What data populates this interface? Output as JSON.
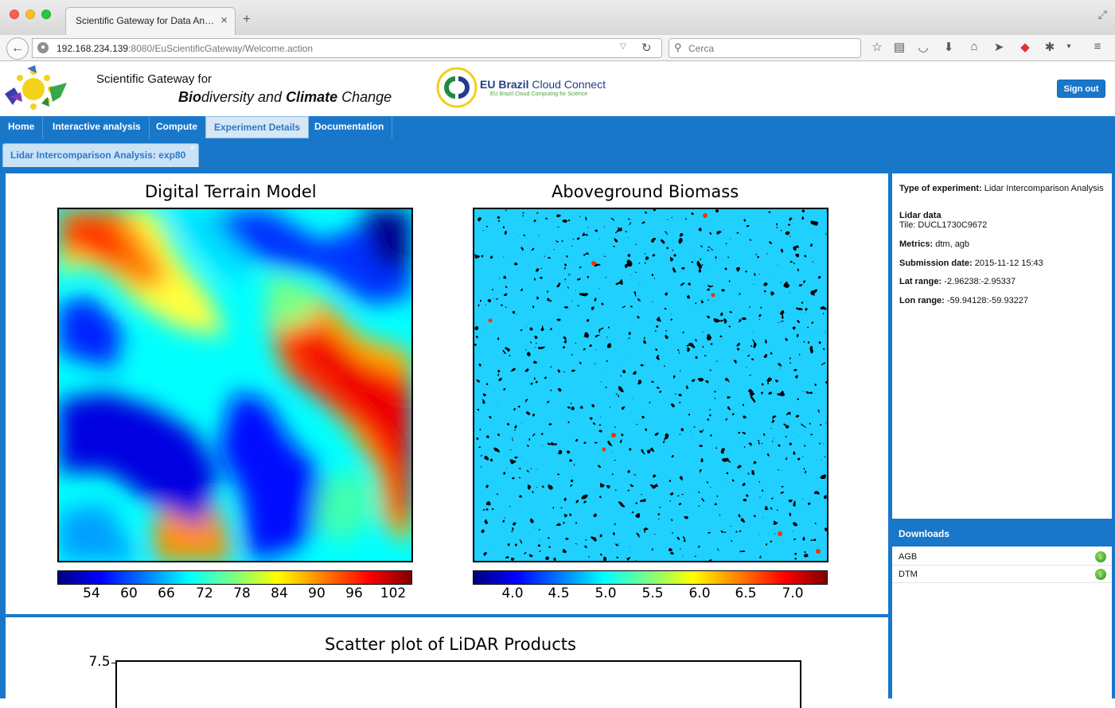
{
  "browser": {
    "tab_title": "Scientific Gateway for Data An…",
    "tab_close": "×",
    "new_tab": "+",
    "url_host": "192.168.234.139",
    "url_rest": ":8080/EuScientificGateway/Welcome.action",
    "search_placeholder": "Cerca"
  },
  "header": {
    "title_line1": "Scientific Gateway for",
    "title_line2_bold1": "Bio",
    "title_line2_part1": "diversity and ",
    "title_line2_bold2": "Climate",
    "title_line2_part2": " Change",
    "partner_bold": "EU Brazil",
    "partner_rest": " Cloud Connect",
    "partner_sub": "EU Brazil Cloud Computing for Science",
    "signout_label": "Sign out"
  },
  "menu": {
    "items": [
      {
        "label": "Home"
      },
      {
        "label": "Interactive analysis"
      },
      {
        "label": "Compute"
      },
      {
        "label": "Experiment Details"
      },
      {
        "label": "Documentation"
      }
    ],
    "active_index": 3
  },
  "subtab": {
    "label": "Lidar Intercomparison Analysis: exp80",
    "close": "×"
  },
  "plots": {
    "dtm_title": "Digital Terrain Model",
    "agb_title": "Aboveground Biomass",
    "scatter_title": "Scatter plot of LiDAR Products",
    "scatter_y_top": "7.5"
  },
  "chart_data": [
    {
      "type": "heatmap",
      "title": "Digital Terrain Model",
      "colorbar_ticks": [
        "54",
        "60",
        "66",
        "72",
        "78",
        "84",
        "90",
        "96",
        "102"
      ],
      "colorbar_range": [
        48,
        105
      ],
      "colormap": "jet"
    },
    {
      "type": "heatmap",
      "title": "Aboveground Biomass",
      "colorbar_ticks": [
        "4.0",
        "4.5",
        "5.0",
        "5.5",
        "6.0",
        "6.5",
        "7.0"
      ],
      "colorbar_range": [
        3.6,
        7.4
      ],
      "colormap": "jet"
    },
    {
      "type": "scatter",
      "title": "Scatter plot of LiDAR Products",
      "ytick_labels": [
        "7.5"
      ]
    }
  ],
  "info": {
    "type_label": "Type of experiment:",
    "type_value": " Lidar Intercomparison Analysis",
    "lidar_label": "Lidar data",
    "tile_value": "Tile: DUCL1730C9672",
    "metrics_label": "Metrics:",
    "metrics_value": " dtm, agb",
    "submission_label": "Submission date:",
    "submission_value": " 2015-11-12 15:43",
    "lat_label": "Lat range:",
    "lat_value": " -2.96238:-2.95337",
    "lon_label": "Lon range:",
    "lon_value": " -59.94128:-59.93227"
  },
  "downloads": {
    "header": "Downloads",
    "items": [
      {
        "label": "AGB"
      },
      {
        "label": "DTM"
      }
    ]
  }
}
